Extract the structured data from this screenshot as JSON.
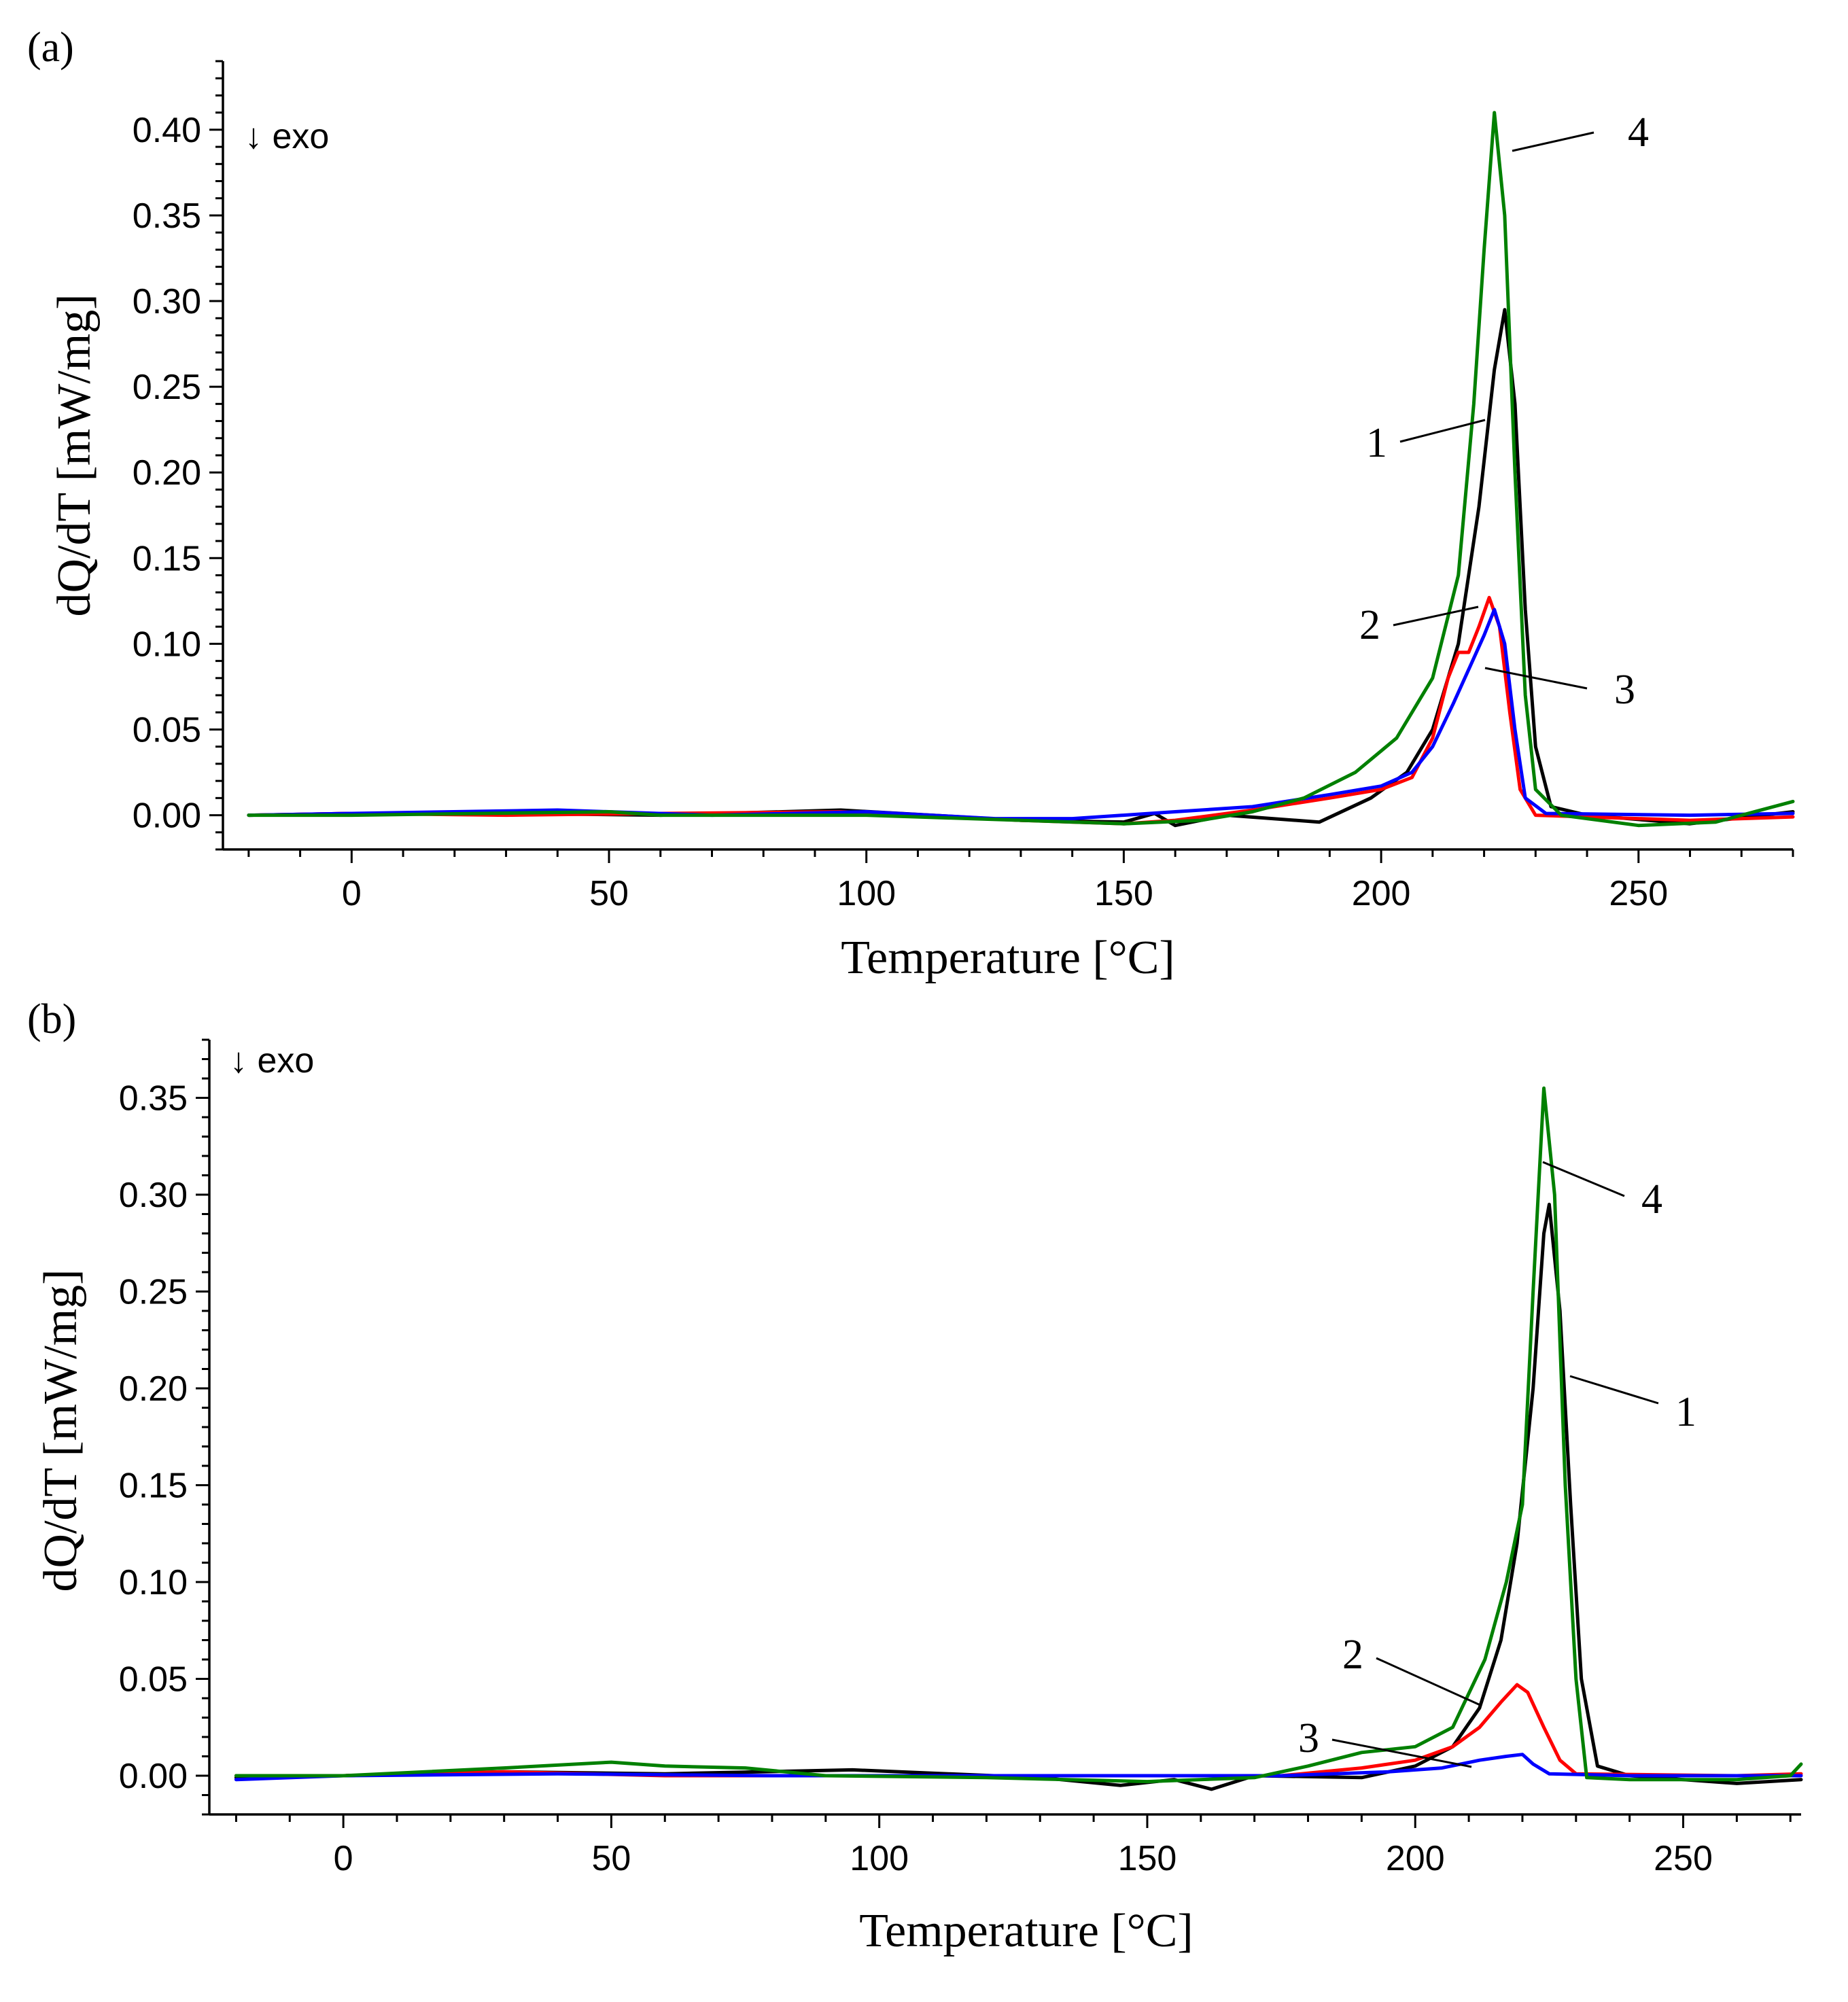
{
  "chart_data": [
    {
      "type": "line",
      "panel_label": "(a)",
      "exo_label": "↓ exo",
      "xlabel": "Temperature [°C]",
      "ylabel": "dQ/dT [mW/mg]",
      "xlim": [
        -25,
        280
      ],
      "ylim": [
        -0.02,
        0.44
      ],
      "xticks": [
        0,
        50,
        100,
        150,
        200,
        250
      ],
      "xtick_labels": [
        "0",
        "50",
        "100",
        "150",
        "200",
        "250"
      ],
      "yticks": [
        0.0,
        0.05,
        0.1,
        0.15,
        0.2,
        0.25,
        0.3,
        0.35,
        0.4
      ],
      "ytick_labels": [
        "0.00",
        "0.05",
        "0.10",
        "0.15",
        "0.20",
        "0.25",
        "0.30",
        "0.35",
        "0.40"
      ],
      "series": [
        {
          "name": "1",
          "color": "#000000",
          "points": [
            [
              -20,
              0.0
            ],
            [
              0,
              0.001
            ],
            [
              30,
              0.001
            ],
            [
              60,
              0.0
            ],
            [
              95,
              0.003
            ],
            [
              130,
              -0.003
            ],
            [
              150,
              -0.004
            ],
            [
              156,
              0.001
            ],
            [
              160,
              -0.006
            ],
            [
              170,
              0.0
            ],
            [
              188,
              -0.004
            ],
            [
              198,
              0.01
            ],
            [
              205,
              0.025
            ],
            [
              210,
              0.05
            ],
            [
              215,
              0.1
            ],
            [
              219,
              0.18
            ],
            [
              222,
              0.26
            ],
            [
              224,
              0.295
            ],
            [
              226,
              0.24
            ],
            [
              228,
              0.12
            ],
            [
              230,
              0.04
            ],
            [
              233,
              0.005
            ],
            [
              240,
              0.0
            ],
            [
              260,
              -0.005
            ],
            [
              280,
              0.002
            ]
          ]
        },
        {
          "name": "2",
          "color": "#ff0000",
          "points": [
            [
              -20,
              0.0
            ],
            [
              0,
              0.001
            ],
            [
              30,
              0.0
            ],
            [
              60,
              0.001
            ],
            [
              95,
              0.002
            ],
            [
              130,
              -0.003
            ],
            [
              150,
              -0.005
            ],
            [
              160,
              -0.003
            ],
            [
              175,
              0.003
            ],
            [
              190,
              0.01
            ],
            [
              200,
              0.015
            ],
            [
              206,
              0.022
            ],
            [
              210,
              0.045
            ],
            [
              213,
              0.08
            ],
            [
              215,
              0.095
            ],
            [
              217,
              0.095
            ],
            [
              219,
              0.11
            ],
            [
              221,
              0.127
            ],
            [
              223,
              0.11
            ],
            [
              225,
              0.06
            ],
            [
              227,
              0.015
            ],
            [
              230,
              0.0
            ],
            [
              260,
              -0.003
            ],
            [
              280,
              -0.001
            ]
          ]
        },
        {
          "name": "3",
          "color": "#0000ff",
          "points": [
            [
              -20,
              0.0
            ],
            [
              0,
              0.001
            ],
            [
              40,
              0.003
            ],
            [
              70,
              0.0
            ],
            [
              100,
              0.002
            ],
            [
              125,
              -0.002
            ],
            [
              140,
              -0.002
            ],
            [
              160,
              0.002
            ],
            [
              175,
              0.005
            ],
            [
              190,
              0.012
            ],
            [
              200,
              0.017
            ],
            [
              206,
              0.025
            ],
            [
              210,
              0.04
            ],
            [
              214,
              0.065
            ],
            [
              217,
              0.085
            ],
            [
              220,
              0.105
            ],
            [
              222,
              0.12
            ],
            [
              224,
              0.1
            ],
            [
              226,
              0.05
            ],
            [
              228,
              0.01
            ],
            [
              232,
              0.001
            ],
            [
              260,
              0.0
            ],
            [
              280,
              0.001
            ]
          ]
        },
        {
          "name": "4",
          "color": "#008000",
          "points": [
            [
              -20,
              0.0
            ],
            [
              0,
              0.0
            ],
            [
              50,
              0.002
            ],
            [
              60,
              0.0
            ],
            [
              100,
              0.0
            ],
            [
              150,
              -0.005
            ],
            [
              165,
              -0.003
            ],
            [
              175,
              0.002
            ],
            [
              185,
              0.01
            ],
            [
              195,
              0.025
            ],
            [
              203,
              0.045
            ],
            [
              210,
              0.08
            ],
            [
              215,
              0.14
            ],
            [
              218,
              0.24
            ],
            [
              220,
              0.33
            ],
            [
              222,
              0.41
            ],
            [
              224,
              0.35
            ],
            [
              226,
              0.2
            ],
            [
              228,
              0.07
            ],
            [
              230,
              0.015
            ],
            [
              235,
              0.0
            ],
            [
              250,
              -0.006
            ],
            [
              265,
              -0.004
            ],
            [
              280,
              0.008
            ]
          ]
        }
      ],
      "annotations": [
        "1",
        "2",
        "3",
        "4"
      ]
    },
    {
      "type": "line",
      "panel_label": "(b)",
      "exo_label": "↓ exo",
      "xlabel": "Temperature [°C]",
      "ylabel": "dQ/dT [mW/mg]",
      "xlim": [
        -25,
        272
      ],
      "ylim": [
        -0.02,
        0.38
      ],
      "xticks": [
        0,
        50,
        100,
        150,
        200,
        250
      ],
      "xtick_labels": [
        "0",
        "50",
        "100",
        "150",
        "200",
        "250"
      ],
      "yticks": [
        0.0,
        0.05,
        0.1,
        0.15,
        0.2,
        0.25,
        0.3,
        0.35
      ],
      "ytick_labels": [
        "0.00",
        "0.05",
        "0.10",
        "0.15",
        "0.20",
        "0.25",
        "0.30",
        "0.35"
      ],
      "series": [
        {
          "name": "1",
          "color": "#000000",
          "points": [
            [
              -20,
              -0.001
            ],
            [
              0,
              0.0
            ],
            [
              30,
              0.002
            ],
            [
              60,
              0.001
            ],
            [
              95,
              0.003
            ],
            [
              130,
              -0.001
            ],
            [
              145,
              -0.005
            ],
            [
              155,
              -0.002
            ],
            [
              162,
              -0.007
            ],
            [
              170,
              0.0
            ],
            [
              190,
              -0.001
            ],
            [
              200,
              0.005
            ],
            [
              207,
              0.015
            ],
            [
              212,
              0.035
            ],
            [
              216,
              0.07
            ],
            [
              219,
              0.12
            ],
            [
              222,
              0.2
            ],
            [
              224,
              0.28
            ],
            [
              225,
              0.295
            ],
            [
              227,
              0.24
            ],
            [
              229,
              0.14
            ],
            [
              231,
              0.05
            ],
            [
              234,
              0.005
            ],
            [
              240,
              0.0
            ],
            [
              260,
              -0.004
            ],
            [
              272,
              -0.002
            ]
          ]
        },
        {
          "name": "2",
          "color": "#ff0000",
          "points": [
            [
              -20,
              0.0
            ],
            [
              0,
              0.0
            ],
            [
              30,
              0.002
            ],
            [
              60,
              0.0
            ],
            [
              100,
              0.0
            ],
            [
              130,
              0.0
            ],
            [
              150,
              0.0
            ],
            [
              175,
              0.0
            ],
            [
              190,
              0.004
            ],
            [
              200,
              0.008
            ],
            [
              207,
              0.015
            ],
            [
              212,
              0.025
            ],
            [
              216,
              0.038
            ],
            [
              219,
              0.047
            ],
            [
              221,
              0.043
            ],
            [
              224,
              0.025
            ],
            [
              227,
              0.008
            ],
            [
              230,
              0.001
            ],
            [
              260,
              0.0
            ],
            [
              272,
              0.001
            ]
          ]
        },
        {
          "name": "3",
          "color": "#0000ff",
          "points": [
            [
              -20,
              -0.002
            ],
            [
              0,
              0.0
            ],
            [
              40,
              0.001
            ],
            [
              80,
              0.0
            ],
            [
              100,
              0.0
            ],
            [
              150,
              0.0
            ],
            [
              175,
              0.0
            ],
            [
              195,
              0.002
            ],
            [
              205,
              0.004
            ],
            [
              212,
              0.008
            ],
            [
              217,
              0.01
            ],
            [
              220,
              0.011
            ],
            [
              222,
              0.006
            ],
            [
              225,
              0.001
            ],
            [
              240,
              0.0
            ],
            [
              272,
              0.0
            ]
          ]
        },
        {
          "name": "4",
          "color": "#008000",
          "points": [
            [
              -20,
              0.0
            ],
            [
              0,
              0.0
            ],
            [
              30,
              0.004
            ],
            [
              50,
              0.007
            ],
            [
              60,
              0.005
            ],
            [
              75,
              0.004
            ],
            [
              90,
              0.0
            ],
            [
              120,
              -0.001
            ],
            [
              150,
              -0.003
            ],
            [
              170,
              -0.001
            ],
            [
              180,
              0.005
            ],
            [
              190,
              0.012
            ],
            [
              200,
              0.015
            ],
            [
              207,
              0.025
            ],
            [
              213,
              0.06
            ],
            [
              217,
              0.1
            ],
            [
              220,
              0.14
            ],
            [
              222,
              0.25
            ],
            [
              224,
              0.355
            ],
            [
              226,
              0.3
            ],
            [
              228,
              0.15
            ],
            [
              230,
              0.05
            ],
            [
              232,
              -0.001
            ],
            [
              240,
              -0.002
            ],
            [
              260,
              -0.002
            ],
            [
              270,
              0.0
            ],
            [
              272,
              0.006
            ]
          ]
        }
      ],
      "annotations": [
        "1",
        "2",
        "3",
        "4"
      ]
    }
  ]
}
